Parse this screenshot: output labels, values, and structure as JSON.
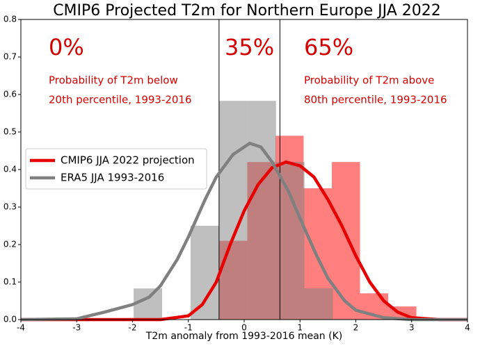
{
  "chart_data": {
    "type": "histogram",
    "title": "CMIP6 Projected T2m for Northern Europe JJA 2022",
    "x_label": "T2m anomaly from 1993-2016 mean (K)",
    "xlim": [
      -4,
      4
    ],
    "ylim": [
      0,
      0.8
    ],
    "xticks": [
      -4,
      -3,
      -2,
      -1,
      0,
      1,
      2,
      3,
      4
    ],
    "yticks": [
      {
        "value": 0,
        "label": "0.0"
      },
      0.1,
      0.2,
      0.3,
      0.4,
      0.5,
      0.6,
      0.7,
      0.8
    ],
    "histograms": [
      {
        "color": "#ff0000",
        "bins": [
          -0.45,
          0.055,
          0.56,
          1.065,
          1.57,
          2.075,
          2.58,
          3.085
        ],
        "values": [
          0.21,
          0.42,
          0.49,
          0.35,
          0.42,
          0.07,
          0.035
        ]
      },
      {
        "color": "#808080",
        "bins": [
          -1.98,
          -1.47,
          -0.96,
          -0.45,
          0.06,
          0.57,
          1.08,
          1.59
        ],
        "values": [
          0.083,
          0,
          0.25,
          0.583,
          0.583,
          0.42,
          0.083
        ]
      }
    ],
    "series": [
      {
        "name": "CMIP6 JJA 2022 projection",
        "color": "#e60000",
        "x": [
          -4,
          -1.5,
          -1,
          -0.75,
          -0.5,
          -0.25,
          0,
          0.25,
          0.5,
          0.75,
          1,
          1.25,
          1.5,
          1.75,
          2,
          2.25,
          2.5,
          2.75,
          3,
          3.5,
          4
        ],
        "values": [
          0,
          0,
          0.01,
          0.04,
          0.1,
          0.2,
          0.29,
          0.36,
          0.405,
          0.42,
          0.41,
          0.38,
          0.32,
          0.25,
          0.17,
          0.1,
          0.05,
          0.02,
          0.005,
          0,
          0
        ]
      },
      {
        "name": "ERA5 JJA 1993-2016",
        "color": "#808080",
        "x": [
          -4,
          -3,
          -2.5,
          -2,
          -1.7,
          -1.5,
          -1.2,
          -1,
          -0.7,
          -0.5,
          -0.2,
          0.1,
          0.3,
          0.5,
          0.8,
          1,
          1.3,
          1.5,
          1.8,
          2,
          2.5,
          3,
          4
        ],
        "values": [
          0,
          0.002,
          0.02,
          0.04,
          0.06,
          0.09,
          0.16,
          0.22,
          0.32,
          0.38,
          0.44,
          0.47,
          0.46,
          0.42,
          0.34,
          0.27,
          0.17,
          0.11,
          0.05,
          0.025,
          0.005,
          0,
          0
        ]
      }
    ],
    "vlines": [
      -0.45,
      0.64
    ],
    "annotation_color": "#d40000",
    "annotations": [
      "0%",
      "35%",
      "65%",
      "Probability of T2m below",
      "20th percentile, 1993-2016",
      "Probability of T2m above",
      "80th percentile, 1993-2016"
    ],
    "legend": "center left"
  }
}
